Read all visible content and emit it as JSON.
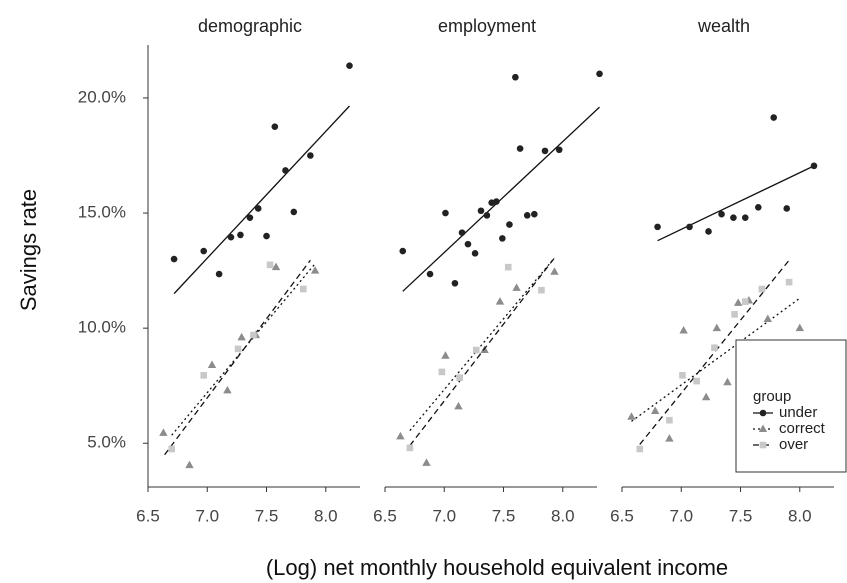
{
  "xlabel": "(Log) net monthly household equivalent income",
  "ylabel": "Savings rate",
  "legend": {
    "title": "group",
    "position": "lower right"
  },
  "chart_data": [
    {
      "type": "scatter",
      "title": "demographic",
      "xlim": [
        6.5,
        8.39
      ],
      "ylim": [
        3.1,
        22.3
      ],
      "xticks": [
        6.5,
        {
          "value": 7,
          "label": "7.0"
        },
        7.5,
        {
          "value": 8,
          "label": "8.0"
        }
      ],
      "yticks": [
        {
          "value": 5,
          "label": "5.0%"
        },
        {
          "value": 10,
          "label": "10.0%"
        },
        {
          "value": 15,
          "label": "15.0%"
        },
        {
          "value": 20,
          "label": "20.0%"
        }
      ],
      "series": [
        {
          "name": "under",
          "color": "#222222",
          "marker": "circle",
          "dash": "solid",
          "x": [
            6.72,
            6.97,
            7.1,
            7.2,
            7.28,
            7.36,
            7.43,
            7.5,
            7.57,
            7.66,
            7.73,
            7.87,
            8.2
          ],
          "y": [
            13.0,
            13.35,
            12.35,
            13.95,
            14.05,
            14.8,
            15.2,
            14.0,
            18.75,
            16.85,
            15.05,
            17.5,
            21.4
          ],
          "fit": {
            "x": [
              6.72,
              8.2
            ],
            "y": [
              11.5,
              19.65
            ]
          }
        },
        {
          "name": "correct",
          "color": "#8c8c8c",
          "marker": "triangle",
          "dash": "dotted",
          "x": [
            6.63,
            6.85,
            7.04,
            7.17,
            7.29,
            7.41,
            7.58,
            7.91
          ],
          "y": [
            5.45,
            4.05,
            8.4,
            7.3,
            9.6,
            9.7,
            12.65,
            12.5
          ],
          "fit": {
            "x": [
              6.7,
              7.91
            ],
            "y": [
              5.35,
              12.8
            ]
          }
        },
        {
          "name": "over",
          "color": "#c8c8c8",
          "marker": "square",
          "dash": "dashed",
          "x": [
            6.7,
            6.97,
            7.26,
            7.39,
            7.53,
            7.81
          ],
          "y": [
            4.75,
            7.95,
            9.1,
            9.7,
            12.75,
            11.7
          ],
          "fit": {
            "x": [
              6.64,
              7.87
            ],
            "y": [
              4.5,
              12.95
            ]
          }
        }
      ]
    },
    {
      "type": "scatter",
      "title": "employment",
      "xlim": [
        6.5,
        8.39
      ],
      "ylim": [
        3.1,
        22.3
      ],
      "xticks": [
        6.5,
        {
          "value": 7,
          "label": "7.0"
        },
        7.5,
        {
          "value": 8,
          "label": "8.0"
        }
      ],
      "series": [
        {
          "name": "under",
          "color": "#222222",
          "marker": "circle",
          "dash": "solid",
          "x": [
            6.65,
            6.88,
            7.01,
            7.09,
            7.15,
            7.2,
            7.26,
            7.31,
            7.36,
            7.4,
            7.44,
            7.49,
            7.55,
            7.6,
            7.64,
            7.7,
            7.76,
            7.85,
            7.97,
            8.31
          ],
          "y": [
            13.35,
            12.35,
            15.0,
            11.95,
            14.15,
            13.65,
            13.25,
            15.1,
            14.9,
            15.45,
            15.5,
            13.9,
            14.5,
            20.9,
            17.8,
            14.9,
            14.95,
            17.7,
            17.75,
            21.05
          ],
          "fit": {
            "x": [
              6.65,
              8.31
            ],
            "y": [
              11.6,
              19.6
            ]
          }
        },
        {
          "name": "correct",
          "color": "#8c8c8c",
          "marker": "triangle",
          "dash": "dotted",
          "x": [
            6.63,
            6.85,
            7.01,
            7.12,
            7.34,
            7.47,
            7.61,
            7.93
          ],
          "y": [
            5.3,
            4.15,
            8.8,
            6.6,
            9.05,
            11.15,
            11.75,
            12.45
          ],
          "fit": {
            "x": [
              6.71,
              7.93
            ],
            "y": [
              5.55,
              13.05
            ]
          }
        },
        {
          "name": "over",
          "color": "#c8c8c8",
          "marker": "square",
          "dash": "dashed",
          "x": [
            6.71,
            6.98,
            7.13,
            7.27,
            7.54,
            7.82
          ],
          "y": [
            4.8,
            8.1,
            7.85,
            9.05,
            12.65,
            11.65
          ],
          "fit": {
            "x": [
              6.71,
              7.93
            ],
            "y": [
              4.9,
              13.05
            ]
          }
        }
      ]
    },
    {
      "type": "scatter",
      "title": "wealth",
      "xlim": [
        6.5,
        8.39
      ],
      "ylim": [
        3.1,
        22.3
      ],
      "xticks": [
        6.5,
        {
          "value": 7,
          "label": "7.0"
        },
        7.5,
        {
          "value": 8,
          "label": "8.0"
        }
      ],
      "series": [
        {
          "name": "under",
          "color": "#222222",
          "marker": "circle",
          "dash": "solid",
          "x": [
            6.8,
            7.07,
            7.23,
            7.34,
            7.44,
            7.54,
            7.65,
            7.78,
            7.89,
            8.12
          ],
          "y": [
            14.4,
            14.4,
            14.2,
            14.95,
            14.8,
            14.8,
            15.25,
            19.15,
            15.2,
            17.05
          ],
          "fit": {
            "x": [
              6.8,
              8.12
            ],
            "y": [
              13.8,
              17.05
            ]
          }
        },
        {
          "name": "correct",
          "color": "#8c8c8c",
          "marker": "triangle",
          "dash": "dotted",
          "x": [
            6.58,
            6.78,
            6.9,
            7.02,
            7.21,
            7.3,
            7.39,
            7.48,
            7.57,
            7.73,
            8.0
          ],
          "y": [
            6.15,
            6.4,
            5.2,
            9.9,
            7.0,
            10.0,
            7.65,
            11.1,
            11.2,
            10.4,
            10.0
          ],
          "fit": {
            "x": [
              6.58,
              8.0
            ],
            "y": [
              5.95,
              11.3
            ]
          }
        },
        {
          "name": "over",
          "color": "#c8c8c8",
          "marker": "square",
          "dash": "dashed",
          "x": [
            6.65,
            6.9,
            7.01,
            7.13,
            7.28,
            7.45,
            7.54,
            7.68,
            7.91
          ],
          "y": [
            4.75,
            6.0,
            7.95,
            7.7,
            9.15,
            10.6,
            11.15,
            11.7,
            12.0
          ],
          "fit": {
            "x": [
              6.65,
              7.91
            ],
            "y": [
              4.95,
              12.95
            ]
          }
        }
      ]
    }
  ]
}
